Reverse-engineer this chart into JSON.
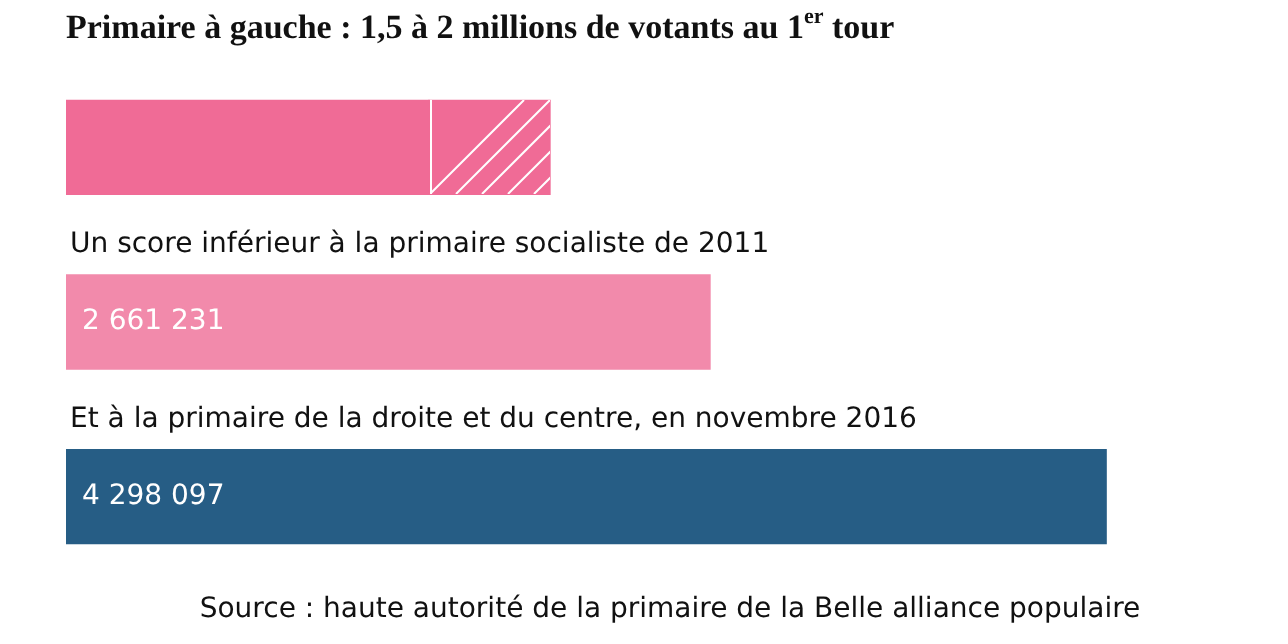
{
  "chart_data": {
    "type": "bar",
    "orientation": "horizontal",
    "stacked": true,
    "title": "Primaire à gauche : 1,5 à 2 millions de votants au 1$^{er}$ tour",
    "categories": [
      null,
      "Un score inférieur à la primaire socialiste de 2011",
      "Et à la primaire de la droite et du centre, en novembre 2016"
    ],
    "series": [
      {
        "colors": [
          "#f06b96",
          "#f28aab",
          "#265d85"
        ],
        "values": [
          1500000,
          2661231,
          4298097
        ],
        "value_labels": [
          null,
          "2 661 231",
          "4 298 097"
        ]
      },
      {
        "color": "#f06b96",
        "values": [
          500000,
          null,
          null
        ]
      }
    ],
    "annotations": [
      "Source : haute autorité de la primaire de la Belle alliance populaire"
    ],
    "legend": false
  }
}
